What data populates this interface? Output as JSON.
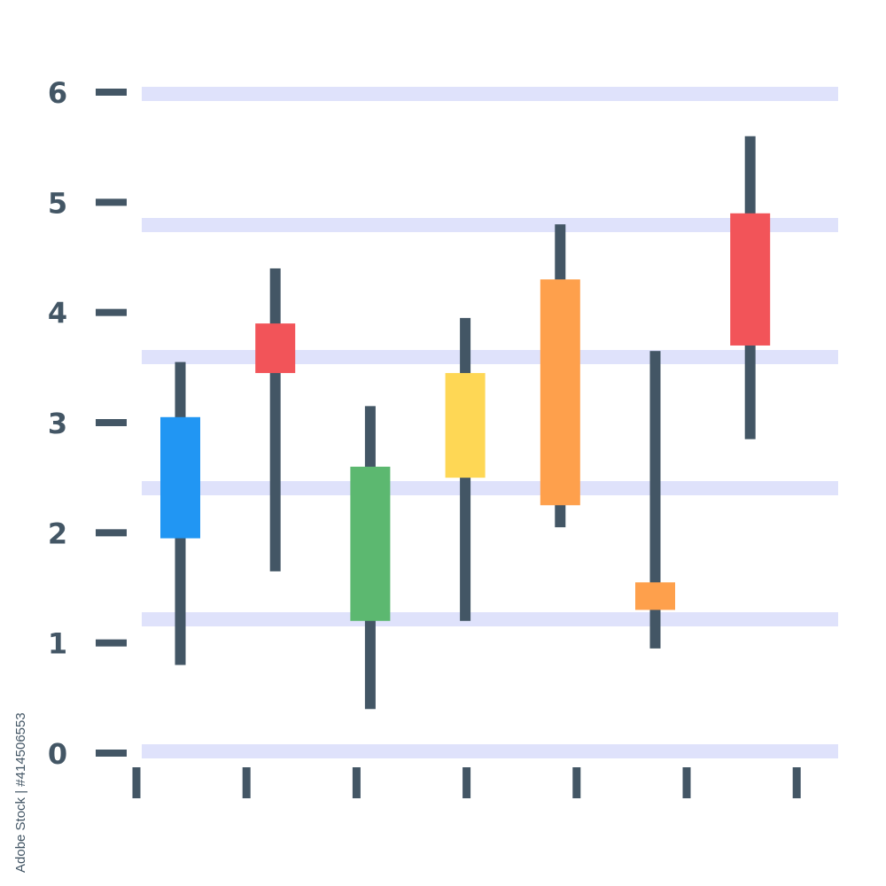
{
  "chart_data": {
    "type": "candlestick",
    "title": "",
    "xlabel": "",
    "ylabel": "",
    "ylim": [
      0,
      6
    ],
    "yticks": [
      "0",
      "1",
      "2",
      "3",
      "4",
      "5",
      "6"
    ],
    "x_tick_count": 7,
    "grid": true,
    "legend": "none",
    "candles": [
      {
        "low": 0.8,
        "high": 3.55,
        "body_low": 1.95,
        "body_high": 3.05,
        "color": "#2196f3"
      },
      {
        "low": 1.65,
        "high": 4.4,
        "body_low": 3.45,
        "body_high": 3.9,
        "color": "#f25459"
      },
      {
        "low": 0.4,
        "high": 3.15,
        "body_low": 1.2,
        "body_high": 2.6,
        "color": "#5cb870"
      },
      {
        "low": 1.2,
        "high": 3.95,
        "body_low": 2.5,
        "body_high": 3.45,
        "color": "#fed755"
      },
      {
        "low": 2.05,
        "high": 4.8,
        "body_low": 2.25,
        "body_high": 4.3,
        "color": "#fea04c"
      },
      {
        "low": 0.95,
        "high": 3.65,
        "body_low": 1.3,
        "body_high": 1.55,
        "color": "#fea04c"
      },
      {
        "low": 2.85,
        "high": 5.6,
        "body_low": 3.7,
        "body_high": 4.9,
        "color": "#f25459"
      }
    ]
  },
  "colors": {
    "axis_ink": "#435665",
    "grid_band": "#dfe2fb",
    "watermark": "#e2e5ee"
  },
  "credit": "Adobe Stock | #414506553"
}
